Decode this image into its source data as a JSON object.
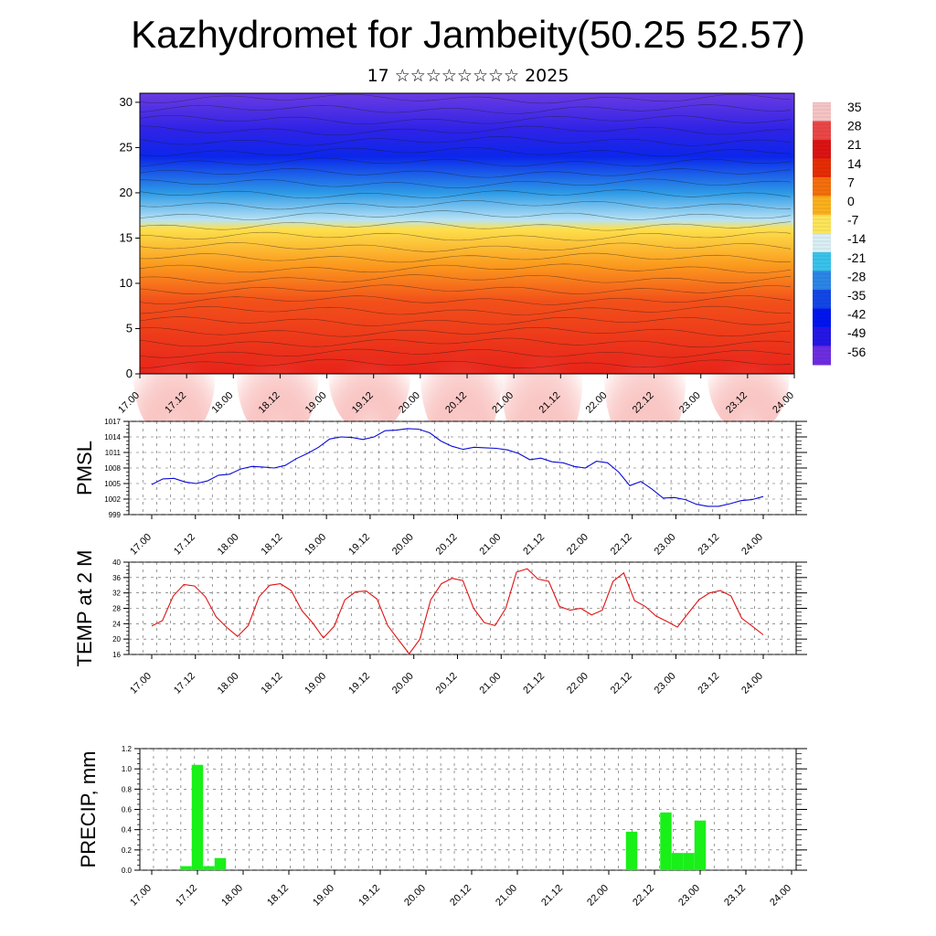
{
  "header": {
    "title": "Kazhydromet for Jambeity(50.25 52.57)",
    "subtitle": "17 ☆☆☆☆☆☆☆☆ 2025"
  },
  "time_labels": [
    "17.00",
    "17.12",
    "18.00",
    "18.12",
    "19.00",
    "19.12",
    "20.00",
    "20.12",
    "21.00",
    "21.12",
    "22.00",
    "22.12",
    "23.00",
    "23.12",
    "24.00"
  ],
  "chart_data": [
    {
      "id": "cross-section",
      "type": "heatmap",
      "title": "",
      "y_ticks": [
        0,
        5,
        10,
        15,
        20,
        25,
        30
      ],
      "ylim": [
        0,
        31
      ],
      "colorbar": {
        "labels": [
          "35",
          "28",
          "21",
          "14",
          "7",
          "0",
          "-7",
          "-14",
          "-21",
          "-28",
          "-35",
          "-42",
          "-49",
          "-56"
        ],
        "colors": [
          "#f6c4c4",
          "#ea4747",
          "#dc1313",
          "#e62d05",
          "#f46f0c",
          "#fbb11d",
          "#fde55a",
          "#d9eef5",
          "#39c3ec",
          "#2b86e6",
          "#1247e6",
          "#0015ef",
          "#2417e6",
          "#6e2de1"
        ]
      },
      "layers_by_height": [
        {
          "h": 0,
          "color": "#e8231a"
        },
        {
          "h": 8,
          "color": "#f2501a"
        },
        {
          "h": 12,
          "color": "#fb9a1e"
        },
        {
          "h": 16,
          "color": "#fde04c"
        },
        {
          "h": 17,
          "color": "#b9e3f4"
        },
        {
          "h": 20,
          "color": "#2d9ae6"
        },
        {
          "h": 24,
          "color": "#0b26ea"
        },
        {
          "h": 27,
          "color": "#2f23e6"
        },
        {
          "h": 31,
          "color": "#6a3be2"
        }
      ]
    },
    {
      "id": "pmsl",
      "type": "line",
      "ylabel": "PMSL",
      "y_ticks": [
        999,
        1002,
        1005,
        1008,
        1011,
        1014,
        1017
      ],
      "ylim": [
        999,
        1017
      ],
      "color": "#0a0ad8",
      "values": [
        1004.8,
        1005.9,
        1006.0,
        1005.3,
        1005.0,
        1005.5,
        1006.6,
        1006.8,
        1007.8,
        1008.3,
        1008.2,
        1008.0,
        1008.5,
        1009.8,
        1010.8,
        1012.0,
        1013.6,
        1014.0,
        1013.9,
        1013.5,
        1014.0,
        1015.2,
        1015.3,
        1015.6,
        1015.5,
        1014.8,
        1013.2,
        1012.2,
        1011.6,
        1012.0,
        1011.9,
        1011.8,
        1011.5,
        1010.8,
        1009.6,
        1009.9,
        1009.2,
        1009.0,
        1008.3,
        1008.0,
        1009.3,
        1009.0,
        1007.2,
        1004.6,
        1005.4,
        1003.9,
        1002.2,
        1002.3,
        1001.9,
        1001.0,
        1000.6,
        1000.6,
        1001.1,
        1001.7,
        1001.9,
        1002.5
      ]
    },
    {
      "id": "temp",
      "type": "line",
      "ylabel": "TEMP at 2 M",
      "y_ticks": [
        16,
        20,
        24,
        28,
        32,
        36,
        40
      ],
      "ylim": [
        16,
        40
      ],
      "color": "#e01212",
      "values": [
        23.4,
        24.8,
        31.2,
        34.2,
        33.8,
        31.0,
        25.8,
        23.0,
        20.7,
        23.5,
        31.0,
        34.0,
        34.4,
        32.6,
        27.4,
        24.2,
        20.3,
        23.3,
        30.2,
        32.3,
        32.5,
        30.4,
        23.5,
        19.8,
        16.2,
        20.0,
        30.2,
        34.4,
        35.8,
        35.2,
        28.0,
        24.3,
        23.5,
        28.0,
        37.4,
        38.3,
        35.6,
        35.0,
        28.5,
        27.5,
        28.0,
        26.3,
        27.5,
        35.0,
        37.2,
        30.0,
        28.5,
        26.0,
        24.6,
        23.1,
        26.7,
        30.2,
        32.0,
        32.6,
        31.2,
        25.4,
        23.3,
        21.1
      ]
    },
    {
      "id": "precip",
      "type": "bar",
      "ylabel": "PRECIP, mm",
      "y_ticks": [
        "0.0",
        "0.2",
        "0.4",
        "0.6",
        "0.8",
        "1.0",
        "1.2"
      ],
      "ylim": [
        0,
        1.2
      ],
      "color": "#18f018",
      "bars": [
        {
          "t": 9,
          "v": 0.04
        },
        {
          "t": 12,
          "v": 1.04
        },
        {
          "t": 15,
          "v": 0.04
        },
        {
          "t": 18,
          "v": 0.12
        },
        {
          "t": 126,
          "v": 0.38
        },
        {
          "t": 135,
          "v": 0.57
        },
        {
          "t": 138,
          "v": 0.17
        },
        {
          "t": 141,
          "v": 0.17
        },
        {
          "t": 144,
          "v": 0.49
        }
      ]
    }
  ]
}
